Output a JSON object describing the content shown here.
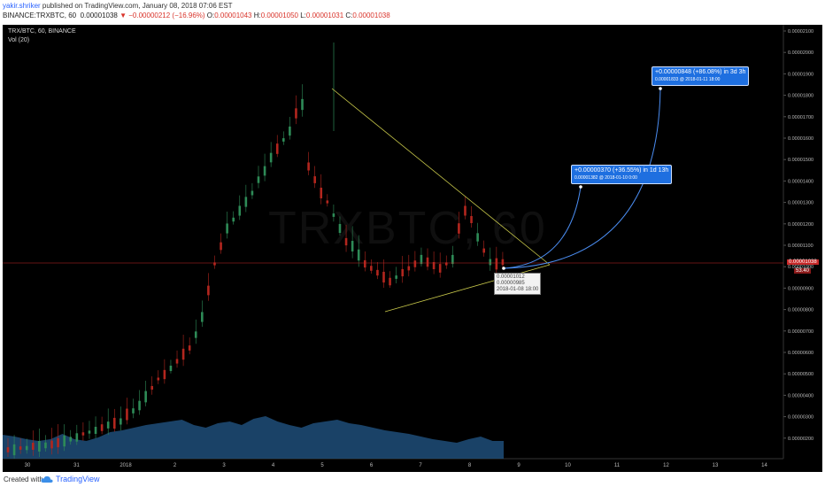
{
  "header": {
    "author": "yakir.shriker",
    "published": " published on TradingView.com, January 08, 2018 07:06 EST",
    "symbol": "BINANCE:TRXBTC, 60",
    "last": "0.00001038",
    "change": "−0.00000212 (−16.96%)",
    "o_label": "O:",
    "open": "0.00001043",
    "h_label": "H:",
    "high": "0.00001050",
    "l_label": "L:",
    "low": "0.00001031",
    "c_label": "C:",
    "close": "0.00001038"
  },
  "legend": {
    "pair": "TRX/BTC, 60, BINANCE",
    "vol": "Vol (20)"
  },
  "watermark": "TRXBTC, 60",
  "price_axis": {
    "ticks": [
      "0.00002100",
      "0.00002000",
      "0.00001900",
      "0.00001800",
      "0.00001700",
      "0.00001600",
      "0.00001500",
      "0.00001400",
      "0.00001300",
      "0.00001200",
      "0.00001100",
      "0.00001000",
      "0.00000900",
      "0.00000800",
      "0.00000700",
      "0.00000600",
      "0.00000500",
      "0.00000400",
      "0.00000300",
      "0.00000200"
    ],
    "current_price": "0.00001038",
    "current_vol": "53.40"
  },
  "time_axis": {
    "ticks": [
      "30",
      "31",
      "2018",
      "2",
      "3",
      "4",
      "5",
      "6",
      "7",
      "8",
      "9",
      "10",
      "11",
      "12",
      "13",
      "14"
    ]
  },
  "callouts": {
    "first_line1": "+0.00000370 (+36.55%) in 1d 13h",
    "first_line2": "0.00001382  @ 2018-01-10  0:00",
    "second_line1": "+0.00000848 (+86.08%) in 3d 3h",
    "second_line2": "0.00001833  @ 2018-01-11  18:00",
    "tooltip_a": "0.00001012",
    "tooltip_b": "0.00000985",
    "tooltip_c": "2018-01-08 18:00"
  },
  "footer": {
    "created": "Created with",
    "brand": "TradingView"
  },
  "colors": {
    "up": "#2e8b57",
    "down": "#b3261e",
    "triangle": "#c8c84a",
    "projection": "#4a8cf0",
    "volume": "#1f4e79",
    "price_line": "#c62828"
  }
}
